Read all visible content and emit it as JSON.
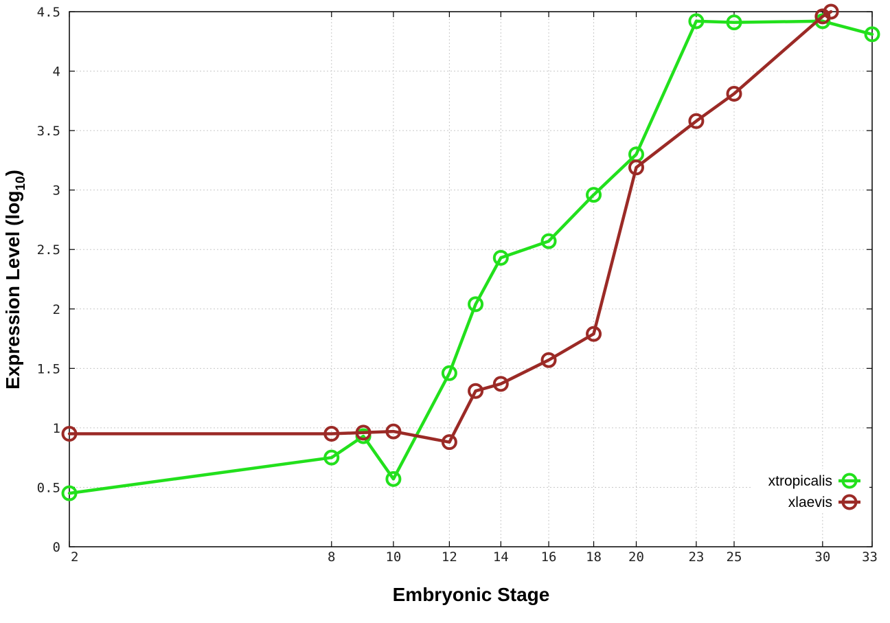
{
  "chart_data": {
    "type": "line",
    "xlabel": "Embryonic Stage",
    "ylabel_main": "Expression Level (log",
    "ylabel_sub": "10",
    "ylabel_close": ")",
    "xlim": [
      2,
      33
    ],
    "ylim": [
      0,
      4.5
    ],
    "x_scale": "square-root (stage)",
    "xticks": [
      2,
      8,
      10,
      12,
      14,
      16,
      18,
      20,
      23,
      25,
      30,
      33
    ],
    "yticks": [
      0,
      0.5,
      1,
      1.5,
      2,
      2.5,
      3,
      3.5,
      4,
      4.5
    ],
    "ytick_labels": [
      "0",
      "0.5",
      "1",
      "1.5",
      "2",
      "2.5",
      "3",
      "3.5",
      "4",
      "4.5"
    ],
    "grid": true,
    "legend_position": "bottom-right",
    "series": [
      {
        "name": "xtropicalis",
        "color": "#22e01c",
        "x": [
          2,
          8,
          9,
          10,
          12,
          13,
          14,
          16,
          18,
          20,
          23,
          25,
          30,
          33
        ],
        "y": [
          0.45,
          0.75,
          0.93,
          0.57,
          1.46,
          2.04,
          2.43,
          2.57,
          2.96,
          3.3,
          4.42,
          4.41,
          4.42,
          4.31
        ]
      },
      {
        "name": "xlaevis",
        "color": "#9b2a26",
        "x": [
          2,
          8,
          9,
          10,
          12,
          13,
          14,
          16,
          18,
          20,
          23,
          25,
          30,
          30.5
        ],
        "y": [
          0.95,
          0.95,
          0.96,
          0.97,
          0.88,
          1.31,
          1.37,
          1.57,
          1.79,
          3.19,
          3.58,
          3.81,
          4.46,
          4.5
        ]
      }
    ],
    "markers": "open circle"
  }
}
